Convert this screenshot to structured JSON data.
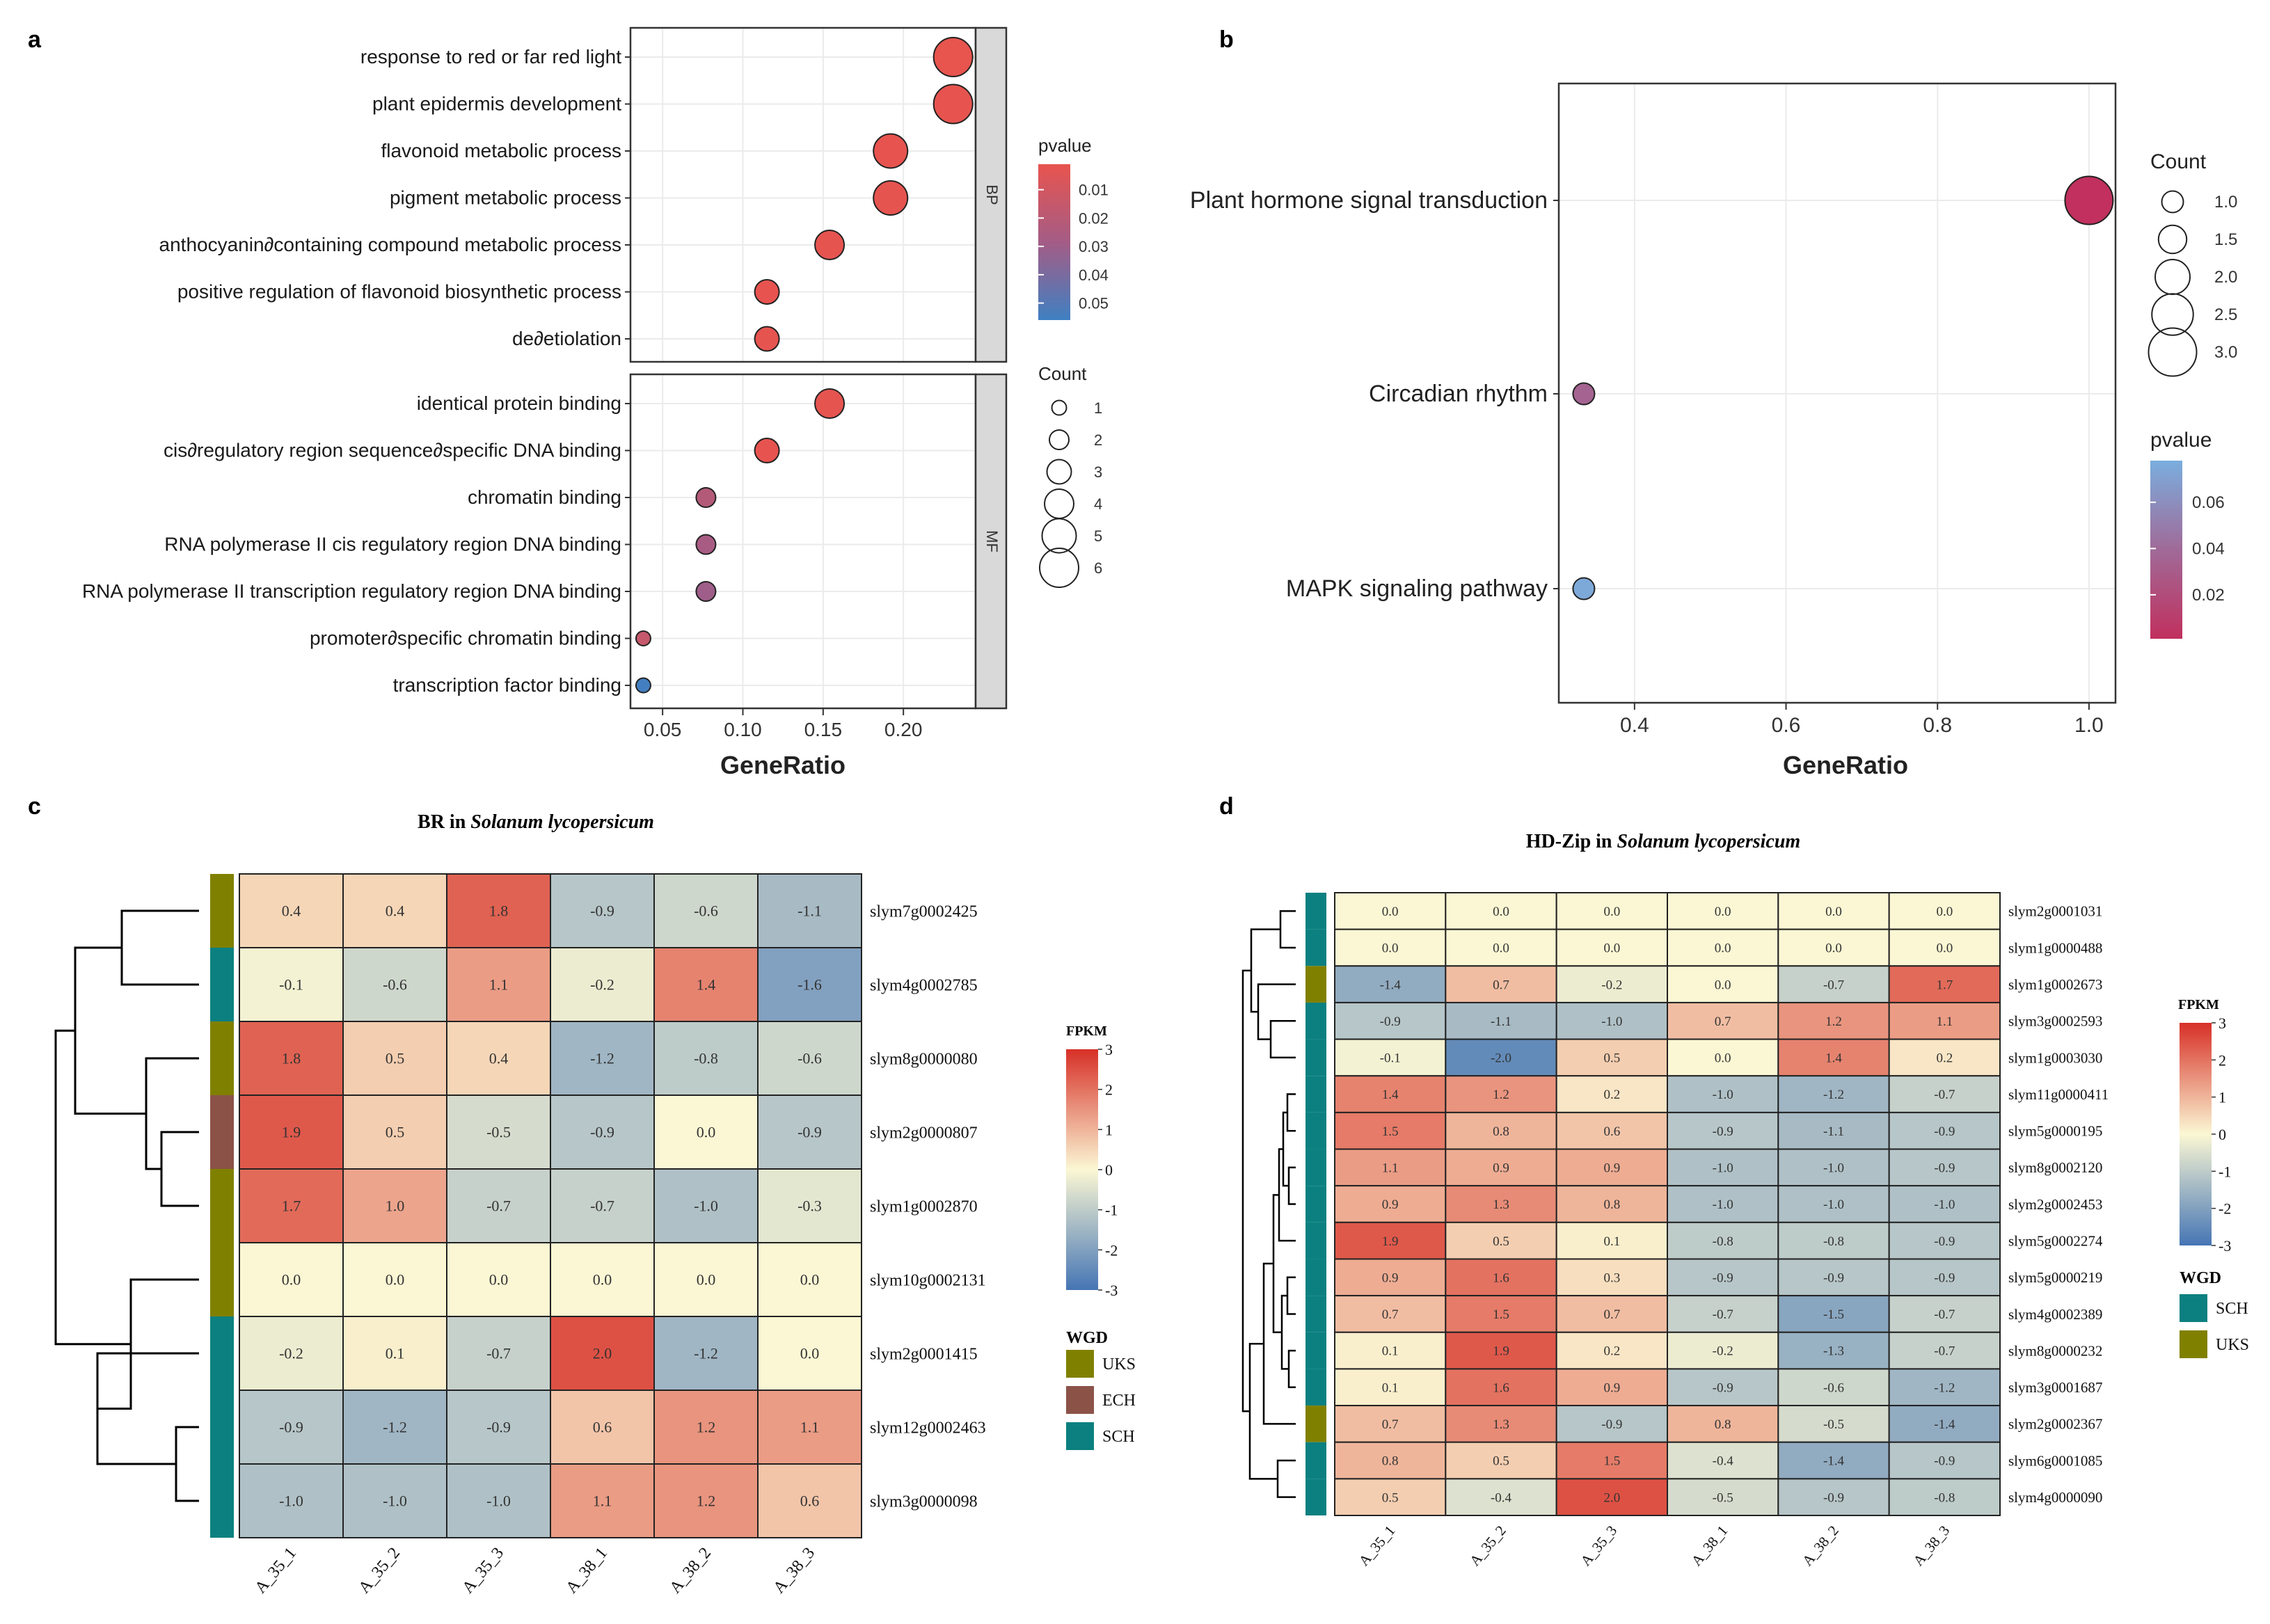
{
  "panels": {
    "a": "a",
    "b": "b",
    "c": "c",
    "d": "d"
  },
  "chart_data": [
    {
      "panel": "a",
      "type": "scatter",
      "xlabel": "GeneRatio",
      "xlim": [
        0.03,
        0.245
      ],
      "xticks": [
        0.05,
        0.1,
        0.15,
        0.2
      ],
      "xtick_labels": [
        "0.05",
        "0.10",
        "0.15",
        "0.20"
      ],
      "facets": [
        {
          "name": "BP",
          "terms": [
            {
              "term": "response to red or far red light",
              "ratio": 0.231,
              "count": 6,
              "pvalue": 0.0012
            },
            {
              "term": "plant epidermis development",
              "ratio": 0.231,
              "count": 6,
              "pvalue": 0.0015
            },
            {
              "term": "flavonoid metabolic process",
              "ratio": 0.192,
              "count": 5,
              "pvalue": 0.0015
            },
            {
              "term": "pigment metabolic process",
              "ratio": 0.192,
              "count": 5,
              "pvalue": 0.002
            },
            {
              "term": "anthocyanin∂containing compound metabolic process",
              "ratio": 0.154,
              "count": 4,
              "pvalue": 0.002
            },
            {
              "term": "positive regulation of flavonoid biosynthetic process",
              "ratio": 0.115,
              "count": 3,
              "pvalue": 0.0015
            },
            {
              "term": "de∂etiolation",
              "ratio": 0.115,
              "count": 3,
              "pvalue": 0.0018
            }
          ]
        },
        {
          "name": "MF",
          "terms": [
            {
              "term": "identical protein binding",
              "ratio": 0.154,
              "count": 4,
              "pvalue": 0.0018
            },
            {
              "term": "cis∂regulatory region sequence∂specific DNA binding",
              "ratio": 0.115,
              "count": 3,
              "pvalue": 0.0015
            },
            {
              "term": "chromatin binding",
              "ratio": 0.077,
              "count": 2,
              "pvalue": 0.022
            },
            {
              "term": "RNA polymerase II cis  regulatory region DNA binding",
              "ratio": 0.077,
              "count": 2,
              "pvalue": 0.027
            },
            {
              "term": "RNA polymerase II transcription regulatory region DNA binding",
              "ratio": 0.077,
              "count": 2,
              "pvalue": 0.03
            },
            {
              "term": "promoter∂specific chromatin binding",
              "ratio": 0.038,
              "count": 1,
              "pvalue": 0.015
            },
            {
              "term": "transcription factor binding",
              "ratio": 0.038,
              "count": 1,
              "pvalue": 0.055
            }
          ]
        }
      ],
      "legend_pvalue": {
        "title": "pvalue",
        "ticks": [
          "0.01",
          "0.02",
          "0.03",
          "0.04",
          "0.05"
        ],
        "range": [
          0.001,
          0.056
        ],
        "low_color": "#e8544e",
        "high_color": "#3f80c2"
      },
      "legend_count": {
        "title": "Count",
        "values": [
          1,
          2,
          3,
          4,
          5,
          6
        ]
      }
    },
    {
      "panel": "b",
      "type": "scatter",
      "xlabel": "GeneRatio",
      "xlim": [
        0.3,
        1.035
      ],
      "xticks": [
        0.4,
        0.6,
        0.8,
        1.0
      ],
      "xtick_labels": [
        "0.4",
        "0.6",
        "0.8",
        "1.0"
      ],
      "terms": [
        {
          "term": "Plant hormone signal transduction",
          "ratio": 1.0,
          "count": 3,
          "pvalue": 0.001
        },
        {
          "term": "Circadian rhythm",
          "ratio": 0.333,
          "count": 1,
          "pvalue": 0.035
        },
        {
          "term": "MAPK signaling pathway",
          "ratio": 0.333,
          "count": 1,
          "pvalue": 0.075
        }
      ],
      "legend_count": {
        "title": "Count",
        "values": [
          1.0,
          1.5,
          2.0,
          2.5,
          3.0
        ],
        "labels": [
          "1.0",
          "1.5",
          "2.0",
          "2.5",
          "3.0"
        ]
      },
      "legend_pvalue": {
        "title": "pvalue",
        "ticks": [
          "0.06",
          "0.04",
          "0.02"
        ],
        "range": [
          0.001,
          0.078
        ],
        "low_color": "#c1305e",
        "high_color": "#7aaede"
      }
    },
    {
      "panel": "c",
      "type": "heatmap",
      "title_prefix": "BR in ",
      "title_species": "Solanum lycopersicum",
      "columns": [
        "A_35_1",
        "A_35_2",
        "A_35_3",
        "A_38_1",
        "A_38_2",
        "A_38_3"
      ],
      "rows": [
        {
          "gene": "slym7g0002425",
          "wgd": "UKS",
          "values": [
            "0.4",
            "0.4",
            "1.8",
            "-0.9",
            "-0.6",
            "-1.1"
          ]
        },
        {
          "gene": "slym4g0002785",
          "wgd": "SCH",
          "values": [
            "-0.1",
            "-0.6",
            "1.1",
            "-0.2",
            "1.4",
            "-1.6"
          ]
        },
        {
          "gene": "slym8g0000080",
          "wgd": "UKS",
          "values": [
            "1.8",
            "0.5",
            "0.4",
            "-1.2",
            "-0.8",
            "-0.6"
          ]
        },
        {
          "gene": "slym2g0000807",
          "wgd": "ECH",
          "values": [
            "1.9",
            "0.5",
            "-0.5",
            "-0.9",
            "0.0",
            "-0.9"
          ]
        },
        {
          "gene": "slym1g0002870",
          "wgd": "UKS",
          "values": [
            "1.7",
            "1.0",
            "-0.7",
            "-0.7",
            "-1.0",
            "-0.3"
          ]
        },
        {
          "gene": "slym10g0002131",
          "wgd": "UKS",
          "values": [
            "0.0",
            "0.0",
            "0.0",
            "0.0",
            "0.0",
            "0.0"
          ]
        },
        {
          "gene": "slym2g0001415",
          "wgd": "SCH",
          "values": [
            "-0.2",
            "0.1",
            "-0.7",
            "2.0",
            "-1.2",
            "0.0"
          ]
        },
        {
          "gene": "slym12g0002463",
          "wgd": "SCH",
          "values": [
            "-0.9",
            "-1.2",
            "-0.9",
            "0.6",
            "1.2",
            "1.1"
          ]
        },
        {
          "gene": "slym3g0000098",
          "wgd": "SCH",
          "values": [
            "-1.0",
            "-1.0",
            "-1.0",
            "1.1",
            "1.2",
            "0.6"
          ]
        }
      ],
      "legend_fpkm": {
        "title": "FPKM",
        "ticks": [
          "3",
          "2",
          "1",
          "0",
          "-1",
          "-2",
          "-3"
        ]
      },
      "legend_wgd": {
        "title": "WGD",
        "items": [
          {
            "label": "UKS",
            "color": "#808000"
          },
          {
            "label": "ECH",
            "color": "#8b5248"
          },
          {
            "label": "SCH",
            "color": "#0c8080"
          }
        ]
      }
    },
    {
      "panel": "d",
      "type": "heatmap",
      "title_prefix": "HD-Zip in ",
      "title_species": "Solanum lycopersicum",
      "columns": [
        "A_35_1",
        "A_35_2",
        "A_35_3",
        "A_38_1",
        "A_38_2",
        "A_38_3"
      ],
      "rows": [
        {
          "gene": "slym2g0001031",
          "wgd": "SCH",
          "values": [
            "0.0",
            "0.0",
            "0.0",
            "0.0",
            "0.0",
            "0.0"
          ]
        },
        {
          "gene": "slym1g0000488",
          "wgd": "SCH",
          "values": [
            "0.0",
            "0.0",
            "0.0",
            "0.0",
            "0.0",
            "0.0"
          ]
        },
        {
          "gene": "slym1g0002673",
          "wgd": "UKS",
          "values": [
            "-1.4",
            "0.7",
            "-0.2",
            "0.0",
            "-0.7",
            "1.7"
          ]
        },
        {
          "gene": "slym3g0002593",
          "wgd": "SCH",
          "values": [
            "-0.9",
            "-1.1",
            "-1.0",
            "0.7",
            "1.2",
            "1.1"
          ]
        },
        {
          "gene": "slym1g0003030",
          "wgd": "SCH",
          "values": [
            "-0.1",
            "-2.0",
            "0.5",
            "0.0",
            "1.4",
            "0.2"
          ]
        },
        {
          "gene": "slym11g0000411",
          "wgd": "SCH",
          "values": [
            "1.4",
            "1.2",
            "0.2",
            "-1.0",
            "-1.2",
            "-0.7"
          ]
        },
        {
          "gene": "slym5g0000195",
          "wgd": "SCH",
          "values": [
            "1.5",
            "0.8",
            "0.6",
            "-0.9",
            "-1.1",
            "-0.9"
          ]
        },
        {
          "gene": "slym8g0002120",
          "wgd": "SCH",
          "values": [
            "1.1",
            "0.9",
            "0.9",
            "-1.0",
            "-1.0",
            "-0.9"
          ]
        },
        {
          "gene": "slym2g0002453",
          "wgd": "SCH",
          "values": [
            "0.9",
            "1.3",
            "0.8",
            "-1.0",
            "-1.0",
            "-1.0"
          ]
        },
        {
          "gene": "slym5g0002274",
          "wgd": "SCH",
          "values": [
            "1.9",
            "0.5",
            "0.1",
            "-0.8",
            "-0.8",
            "-0.9"
          ]
        },
        {
          "gene": "slym5g0000219",
          "wgd": "SCH",
          "values": [
            "0.9",
            "1.6",
            "0.3",
            "-0.9",
            "-0.9",
            "-0.9"
          ]
        },
        {
          "gene": "slym4g0002389",
          "wgd": "SCH",
          "values": [
            "0.7",
            "1.5",
            "0.7",
            "-0.7",
            "-1.5",
            "-0.7"
          ]
        },
        {
          "gene": "slym8g0000232",
          "wgd": "SCH",
          "values": [
            "0.1",
            "1.9",
            "0.2",
            "-0.2",
            "-1.3",
            "-0.7"
          ]
        },
        {
          "gene": "slym3g0001687",
          "wgd": "SCH",
          "values": [
            "0.1",
            "1.6",
            "0.9",
            "-0.9",
            "-0.6",
            "-1.2"
          ]
        },
        {
          "gene": "slym2g0002367",
          "wgd": "UKS",
          "values": [
            "0.7",
            "1.3",
            "-0.9",
            "0.8",
            "-0.5",
            "-1.4"
          ]
        },
        {
          "gene": "slym6g0001085",
          "wgd": "SCH",
          "values": [
            "0.8",
            "0.5",
            "1.5",
            "-0.4",
            "-1.4",
            "-0.9"
          ]
        },
        {
          "gene": "slym4g0000090",
          "wgd": "SCH",
          "values": [
            "0.5",
            "-0.4",
            "2.0",
            "-0.5",
            "-0.9",
            "-0.8"
          ]
        }
      ],
      "legend_fpkm": {
        "title": "FPKM",
        "ticks": [
          "3",
          "2",
          "1",
          "0",
          "-1",
          "-2",
          "-3"
        ]
      },
      "legend_wgd": {
        "title": "WGD",
        "items": [
          {
            "label": "SCH",
            "color": "#0c8080"
          },
          {
            "label": "UKS",
            "color": "#808000"
          }
        ]
      }
    }
  ]
}
